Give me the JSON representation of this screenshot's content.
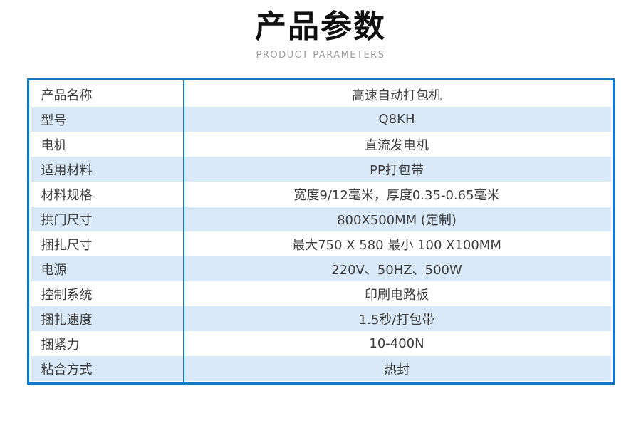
{
  "header": {
    "title": "产品参数",
    "subtitle": "PRODUCT PARAMETERS"
  },
  "table": {
    "rows": [
      {
        "label": "产品名称",
        "value": "高速自动打包机"
      },
      {
        "label": "型号",
        "value": "Q8KH"
      },
      {
        "label": "电机",
        "value": "直流发电机"
      },
      {
        "label": "适用材料",
        "value": "PP打包带"
      },
      {
        "label": "材料规格",
        "value": "宽度9/12毫米，厚度0.35-0.65毫米"
      },
      {
        "label": "拱门尺寸",
        "value": "800X500MM (定制)"
      },
      {
        "label": "捆扎尺寸",
        "value": "最大750 X 580 最小 100 X100MM"
      },
      {
        "label": "电源",
        "value": "220V、50HZ、500W"
      },
      {
        "label": "控制系统",
        "value": "印刷电路板"
      },
      {
        "label": "捆扎速度",
        "value": "1.5秒/打包带"
      },
      {
        "label": "捆紧力",
        "value": "10-400N"
      },
      {
        "label": "粘合方式",
        "value": "热封"
      }
    ]
  },
  "colors": {
    "border_blue": "#1478c0",
    "stripe_blue": "#d9e9f7",
    "text": "#3c3c3c",
    "subtitle_gray": "#9a9a9a"
  }
}
